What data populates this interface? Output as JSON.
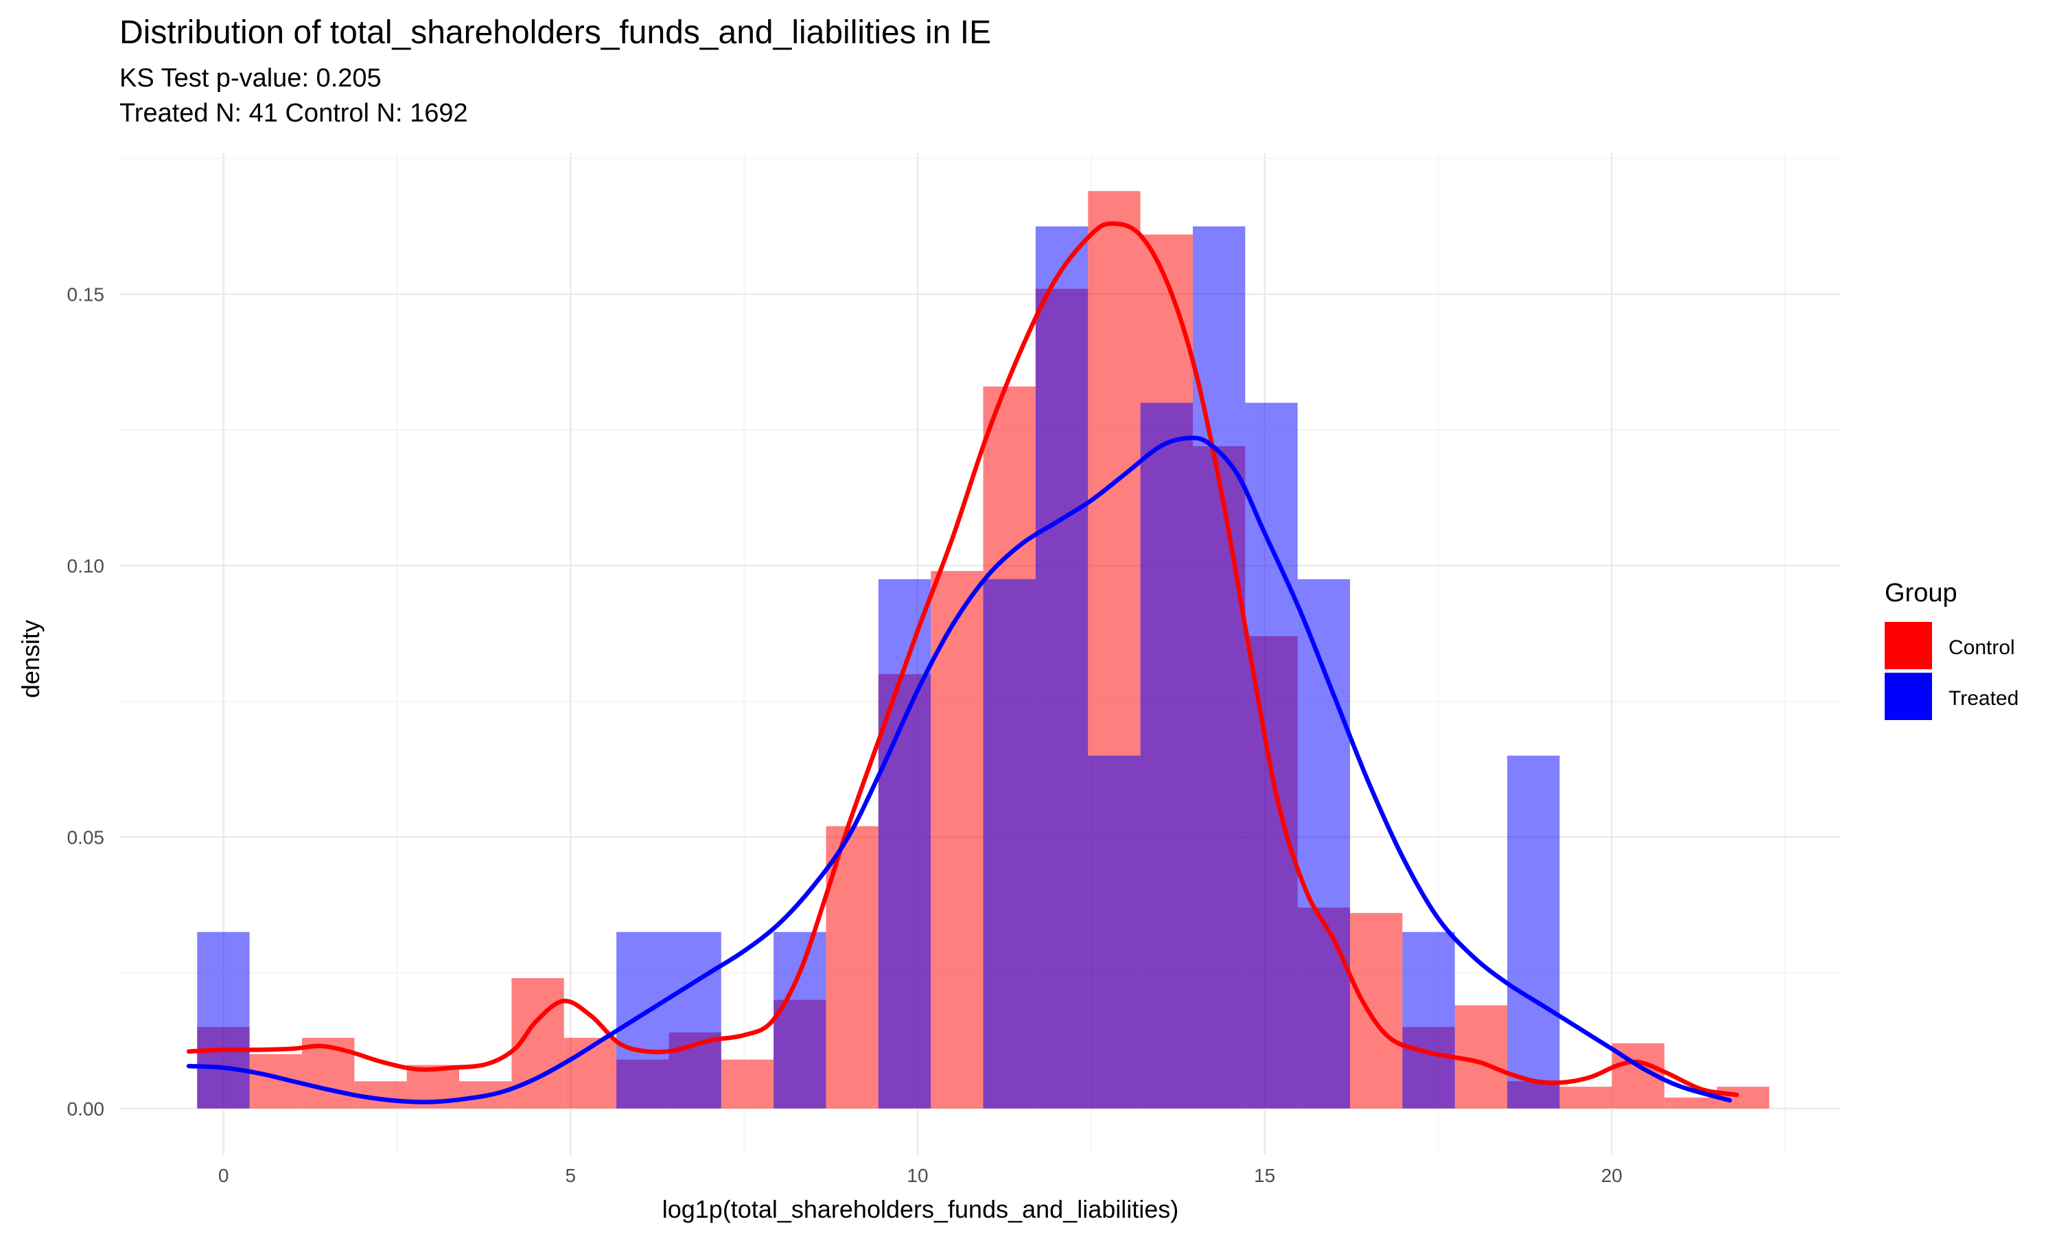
{
  "chart_data": {
    "type": "histogram",
    "title": "Distribution of total_shareholders_funds_and_liabilities in IE",
    "subtitle_lines": [
      "KS Test p-value: 0.205",
      "Treated N: 41 Control N: 1692"
    ],
    "xlabel": "log1p(total_shareholders_funds_and_liabilities)",
    "ylabel": "density",
    "xlim": [
      -1.5,
      23.3
    ],
    "ylim": [
      -0.0085,
      0.176
    ],
    "x_ticks": [
      0,
      5,
      10,
      15,
      20
    ],
    "x_tick_labels": [
      "0",
      "5",
      "10",
      "15",
      "20"
    ],
    "y_ticks": [
      0.0,
      0.05,
      0.1,
      0.15
    ],
    "y_tick_labels": [
      "0.00",
      "0.05",
      "0.10",
      "0.15"
    ],
    "grid": true,
    "legend": {
      "title": "Group",
      "position": "right",
      "items": [
        {
          "label": "Control",
          "color": "#ff0000"
        },
        {
          "label": "Treated",
          "color": "#0000ff"
        }
      ]
    },
    "series": [
      {
        "name": "Control",
        "color": "#ff0000",
        "bin_width": 0.755,
        "bins": [
          {
            "x0": -0.38,
            "height": 0.015
          },
          {
            "x0": 0.375,
            "height": 0.01
          },
          {
            "x0": 1.13,
            "height": 0.013
          },
          {
            "x0": 1.885,
            "height": 0.005
          },
          {
            "x0": 2.64,
            "height": 0.008
          },
          {
            "x0": 3.395,
            "height": 0.005
          },
          {
            "x0": 4.15,
            "height": 0.024
          },
          {
            "x0": 4.905,
            "height": 0.013
          },
          {
            "x0": 5.66,
            "height": 0.009
          },
          {
            "x0": 6.415,
            "height": 0.014
          },
          {
            "x0": 7.17,
            "height": 0.009
          },
          {
            "x0": 7.925,
            "height": 0.02
          },
          {
            "x0": 8.68,
            "height": 0.052
          },
          {
            "x0": 9.435,
            "height": 0.08
          },
          {
            "x0": 10.19,
            "height": 0.099
          },
          {
            "x0": 10.945,
            "height": 0.133
          },
          {
            "x0": 11.7,
            "height": 0.151
          },
          {
            "x0": 12.455,
            "height": 0.169
          },
          {
            "x0": 13.21,
            "height": 0.161
          },
          {
            "x0": 13.965,
            "height": 0.122
          },
          {
            "x0": 14.72,
            "height": 0.087
          },
          {
            "x0": 15.475,
            "height": 0.037
          },
          {
            "x0": 16.23,
            "height": 0.036
          },
          {
            "x0": 16.985,
            "height": 0.015
          },
          {
            "x0": 17.74,
            "height": 0.019
          },
          {
            "x0": 18.495,
            "height": 0.005
          },
          {
            "x0": 19.25,
            "height": 0.004
          },
          {
            "x0": 20.005,
            "height": 0.012
          },
          {
            "x0": 20.76,
            "height": 0.002
          },
          {
            "x0": 21.515,
            "height": 0.004
          }
        ],
        "density_curve": [
          [
            -0.5,
            0.0105
          ],
          [
            0.0,
            0.0108
          ],
          [
            0.5,
            0.0108
          ],
          [
            1.0,
            0.011
          ],
          [
            1.4,
            0.0115
          ],
          [
            1.8,
            0.0105
          ],
          [
            2.3,
            0.0085
          ],
          [
            2.8,
            0.0072
          ],
          [
            3.3,
            0.0075
          ],
          [
            3.8,
            0.0082
          ],
          [
            4.2,
            0.011
          ],
          [
            4.5,
            0.016
          ],
          [
            4.9,
            0.0198
          ],
          [
            5.3,
            0.017
          ],
          [
            5.7,
            0.012
          ],
          [
            6.1,
            0.0105
          ],
          [
            6.5,
            0.0107
          ],
          [
            7.0,
            0.0125
          ],
          [
            7.5,
            0.0135
          ],
          [
            7.9,
            0.016
          ],
          [
            8.3,
            0.025
          ],
          [
            8.7,
            0.04
          ],
          [
            9.0,
            0.052
          ],
          [
            9.5,
            0.07
          ],
          [
            10.0,
            0.088
          ],
          [
            10.5,
            0.105
          ],
          [
            11.0,
            0.124
          ],
          [
            11.5,
            0.14
          ],
          [
            12.0,
            0.153
          ],
          [
            12.5,
            0.161
          ],
          [
            12.8,
            0.163
          ],
          [
            13.2,
            0.161
          ],
          [
            13.6,
            0.152
          ],
          [
            14.0,
            0.136
          ],
          [
            14.4,
            0.112
          ],
          [
            14.8,
            0.083
          ],
          [
            15.2,
            0.056
          ],
          [
            15.6,
            0.04
          ],
          [
            16.0,
            0.031
          ],
          [
            16.4,
            0.02
          ],
          [
            16.8,
            0.013
          ],
          [
            17.3,
            0.0105
          ],
          [
            17.7,
            0.0095
          ],
          [
            18.1,
            0.0085
          ],
          [
            18.5,
            0.0065
          ],
          [
            18.9,
            0.005
          ],
          [
            19.3,
            0.0048
          ],
          [
            19.7,
            0.0058
          ],
          [
            20.1,
            0.008
          ],
          [
            20.4,
            0.0085
          ],
          [
            20.8,
            0.0065
          ],
          [
            21.3,
            0.0035
          ],
          [
            21.8,
            0.0025
          ]
        ]
      },
      {
        "name": "Treated",
        "color": "#0000ff",
        "bin_width": 0.755,
        "bins": [
          {
            "x0": -0.38,
            "height": 0.0325
          },
          {
            "x0": 5.66,
            "height": 0.0325
          },
          {
            "x0": 6.415,
            "height": 0.0325
          },
          {
            "x0": 7.925,
            "height": 0.0325
          },
          {
            "x0": 9.435,
            "height": 0.0975
          },
          {
            "x0": 10.945,
            "height": 0.0975
          },
          {
            "x0": 11.7,
            "height": 0.1625
          },
          {
            "x0": 12.455,
            "height": 0.065
          },
          {
            "x0": 13.21,
            "height": 0.13
          },
          {
            "x0": 13.965,
            "height": 0.1625
          },
          {
            "x0": 14.72,
            "height": 0.13
          },
          {
            "x0": 15.475,
            "height": 0.0975
          },
          {
            "x0": 16.985,
            "height": 0.0325
          },
          {
            "x0": 18.495,
            "height": 0.065
          }
        ],
        "density_curve": [
          [
            -0.5,
            0.0078
          ],
          [
            0.0,
            0.0075
          ],
          [
            0.5,
            0.0065
          ],
          [
            1.0,
            0.005
          ],
          [
            1.5,
            0.0035
          ],
          [
            2.0,
            0.0022
          ],
          [
            2.5,
            0.0014
          ],
          [
            3.0,
            0.0012
          ],
          [
            3.5,
            0.0018
          ],
          [
            4.0,
            0.003
          ],
          [
            4.5,
            0.0055
          ],
          [
            5.0,
            0.009
          ],
          [
            5.5,
            0.013
          ],
          [
            6.0,
            0.017
          ],
          [
            6.5,
            0.021
          ],
          [
            7.0,
            0.025
          ],
          [
            7.5,
            0.029
          ],
          [
            8.0,
            0.034
          ],
          [
            8.5,
            0.041
          ],
          [
            9.0,
            0.05
          ],
          [
            9.5,
            0.063
          ],
          [
            10.0,
            0.077
          ],
          [
            10.5,
            0.089
          ],
          [
            11.0,
            0.098
          ],
          [
            11.5,
            0.104
          ],
          [
            12.0,
            0.108
          ],
          [
            12.5,
            0.112
          ],
          [
            13.0,
            0.117
          ],
          [
            13.5,
            0.122
          ],
          [
            13.9,
            0.1235
          ],
          [
            14.2,
            0.1225
          ],
          [
            14.6,
            0.117
          ],
          [
            15.0,
            0.106
          ],
          [
            15.5,
            0.092
          ],
          [
            16.0,
            0.076
          ],
          [
            16.5,
            0.06
          ],
          [
            17.0,
            0.046
          ],
          [
            17.5,
            0.035
          ],
          [
            18.0,
            0.028
          ],
          [
            18.5,
            0.023
          ],
          [
            19.0,
            0.019
          ],
          [
            19.5,
            0.015
          ],
          [
            20.0,
            0.011
          ],
          [
            20.5,
            0.007
          ],
          [
            21.0,
            0.004
          ],
          [
            21.7,
            0.0015
          ]
        ]
      }
    ]
  }
}
